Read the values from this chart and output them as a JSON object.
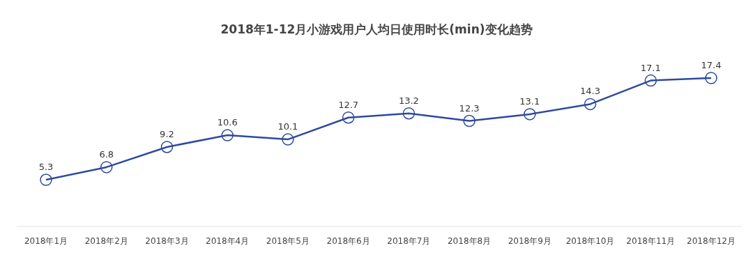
{
  "chart_data": {
    "type": "line",
    "title": "2018年1-12月小游戏用户人均日使用时长(min)变化趋势",
    "categories": [
      "2018年1月",
      "2018年2月",
      "2018年3月",
      "2018年4月",
      "2018年5月",
      "2018年6月",
      "2018年7月",
      "2018年8月",
      "2018年9月",
      "2018年10月",
      "2018年11月",
      "2018年12月"
    ],
    "series": [
      {
        "color": "#2e4a9e",
        "values": [
          5.3,
          6.8,
          9.2,
          10.6,
          10.1,
          12.7,
          13.2,
          12.3,
          13.1,
          14.3,
          17.1,
          17.4
        ]
      }
    ],
    "data_labels": true,
    "marker": "circle",
    "line_style": "solid"
  }
}
